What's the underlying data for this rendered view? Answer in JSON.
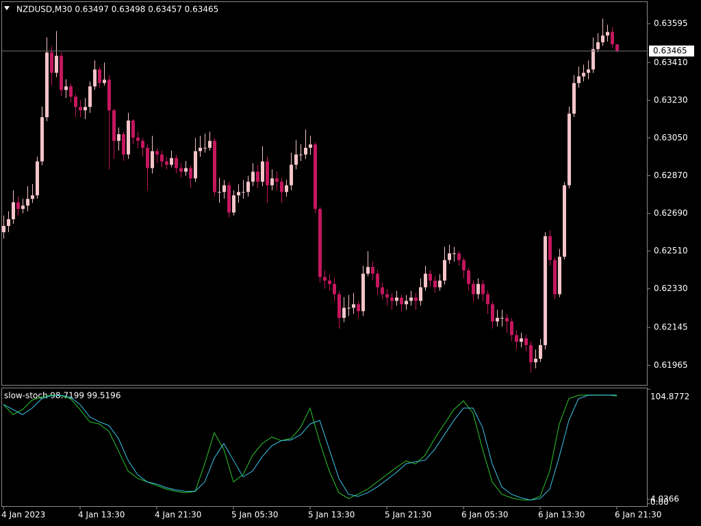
{
  "chart_data": [
    {
      "type": "candlestick",
      "title": "NZDUSD,M30  0.63497 0.63498 0.63457 0.63465",
      "categories": [
        "4 Jan 2023",
        null,
        null,
        null,
        null,
        null,
        null,
        null,
        null,
        null,
        null,
        null,
        null,
        null,
        null,
        null,
        "4 Jan 13:30",
        null,
        null,
        null,
        null,
        null,
        null,
        null,
        null,
        null,
        null,
        null,
        null,
        null,
        null,
        null,
        "4 Jan 21:30",
        null,
        null,
        null,
        null,
        null,
        null,
        null,
        null,
        null,
        null,
        null,
        null,
        null,
        null,
        null,
        "5 Jan 05:30",
        null,
        null,
        null,
        null,
        null,
        null,
        null,
        null,
        null,
        null,
        null,
        null,
        null,
        null,
        null,
        "5 Jan 13:30",
        null,
        null,
        null,
        null,
        null,
        null,
        null,
        null,
        null,
        null,
        null,
        null,
        null,
        null,
        null,
        "5 Jan 21:30",
        null,
        null,
        null,
        null,
        null,
        null,
        null,
        null,
        null,
        null,
        null,
        null,
        null,
        null,
        null,
        "6 Jan 05:30",
        null,
        null,
        null,
        null,
        null,
        null,
        null,
        null,
        null,
        null,
        null,
        null,
        null,
        null,
        null,
        "6 Jan 13:30",
        null,
        null,
        null,
        null,
        null,
        null,
        null,
        null,
        null,
        null,
        null,
        null,
        null,
        null,
        null,
        "6 Jan 21:30"
      ],
      "ohlc": [
        [
          0.626,
          0.6268,
          0.6257,
          0.6263
        ],
        [
          0.6263,
          0.627,
          0.626,
          0.62662
        ],
        [
          0.62662,
          0.628,
          0.6264,
          0.62743
        ],
        [
          0.62743,
          0.6277,
          0.6268,
          0.62711
        ],
        [
          0.62711,
          0.6276,
          0.6269,
          0.62727
        ],
        [
          0.62727,
          0.6282,
          0.627,
          0.62759
        ],
        [
          0.62759,
          0.6283,
          0.6274,
          0.62776
        ],
        [
          0.62776,
          0.6296,
          0.6276,
          0.62938
        ],
        [
          0.62938,
          0.632,
          0.6292,
          0.63149
        ],
        [
          0.63149,
          0.6353,
          0.6313,
          0.63458
        ],
        [
          0.63458,
          0.6349,
          0.633,
          0.63361
        ],
        [
          0.63361,
          0.6356,
          0.6334,
          0.63442
        ],
        [
          0.63442,
          0.6346,
          0.6325,
          0.63279
        ],
        [
          0.63279,
          0.6333,
          0.6324,
          0.63296
        ],
        [
          0.63296,
          0.6331,
          0.6322,
          0.63247
        ],
        [
          0.63247,
          0.6326,
          0.6315,
          0.63198
        ],
        [
          0.63198,
          0.6323,
          0.6315,
          0.63182
        ],
        [
          0.63182,
          0.6324,
          0.6314,
          0.63198
        ],
        [
          0.63198,
          0.6332,
          0.6317,
          0.63296
        ],
        [
          0.63296,
          0.6342,
          0.6328,
          0.63377
        ],
        [
          0.63377,
          0.6339,
          0.6329,
          0.63312
        ],
        [
          0.63312,
          0.6341,
          0.633,
          0.63328
        ],
        [
          0.63328,
          0.6335,
          0.629,
          0.63182
        ],
        [
          0.63182,
          0.6319,
          0.6295,
          0.63036
        ],
        [
          0.63036,
          0.631,
          0.6299,
          0.63068
        ],
        [
          0.63068,
          0.6308,
          0.6294,
          0.62971
        ],
        [
          0.62971,
          0.6317,
          0.6295,
          0.63133
        ],
        [
          0.63133,
          0.6314,
          0.6302,
          0.63052
        ],
        [
          0.63052,
          0.6308,
          0.63,
          0.63036
        ],
        [
          0.63036,
          0.6305,
          0.6296,
          0.63003
        ],
        [
          0.63003,
          0.6302,
          0.628,
          0.62906
        ],
        [
          0.62906,
          0.6306,
          0.6288,
          0.62987
        ],
        [
          0.62987,
          0.63,
          0.6293,
          0.62971
        ],
        [
          0.62971,
          0.6299,
          0.6291,
          0.62938
        ],
        [
          0.62938,
          0.6296,
          0.629,
          0.62922
        ],
        [
          0.62922,
          0.6299,
          0.6291,
          0.62954
        ],
        [
          0.62954,
          0.6297,
          0.6288,
          0.62906
        ],
        [
          0.62906,
          0.6293,
          0.6286,
          0.62889
        ],
        [
          0.62889,
          0.6294,
          0.6287,
          0.62906
        ],
        [
          0.62906,
          0.6292,
          0.6281,
          0.62857
        ],
        [
          0.62857,
          0.6305,
          0.6284,
          0.62987
        ],
        [
          0.62987,
          0.6306,
          0.6296,
          0.63003
        ],
        [
          0.63003,
          0.6307,
          0.6298,
          0.63003
        ],
        [
          0.63003,
          0.6308,
          0.6299,
          0.63036
        ],
        [
          0.63036,
          0.6305,
          0.6277,
          0.62792
        ],
        [
          0.62792,
          0.6286,
          0.6274,
          0.62792
        ],
        [
          0.62792,
          0.6285,
          0.6276,
          0.62824
        ],
        [
          0.62824,
          0.6284,
          0.6267,
          0.62694
        ],
        [
          0.62694,
          0.628,
          0.6268,
          0.62776
        ],
        [
          0.62776,
          0.6283,
          0.6274,
          0.62792
        ],
        [
          0.62792,
          0.6285,
          0.6276,
          0.62792
        ],
        [
          0.62792,
          0.6287,
          0.6277,
          0.62841
        ],
        [
          0.62841,
          0.6293,
          0.6282,
          0.62889
        ],
        [
          0.62889,
          0.6292,
          0.6281,
          0.62841
        ],
        [
          0.62841,
          0.6301,
          0.6282,
          0.62938
        ],
        [
          0.62938,
          0.6296,
          0.6274,
          0.62824
        ],
        [
          0.62824,
          0.629,
          0.628,
          0.62857
        ],
        [
          0.62857,
          0.6289,
          0.628,
          0.62841
        ],
        [
          0.62841,
          0.6286,
          0.6274,
          0.62792
        ],
        [
          0.62792,
          0.6285,
          0.6277,
          0.62824
        ],
        [
          0.62824,
          0.6298,
          0.628,
          0.62922
        ],
        [
          0.62922,
          0.6304,
          0.629,
          0.62971
        ],
        [
          0.62971,
          0.6302,
          0.6294,
          0.62971
        ],
        [
          0.62971,
          0.6309,
          0.6295,
          0.63003
        ],
        [
          0.63003,
          0.6306,
          0.6297,
          0.63019
        ],
        [
          0.63019,
          0.6303,
          0.6269,
          0.62711
        ],
        [
          0.62711,
          0.6272,
          0.6236,
          0.62386
        ],
        [
          0.62386,
          0.6242,
          0.6233,
          0.62369
        ],
        [
          0.62369,
          0.624,
          0.6232,
          0.62353
        ],
        [
          0.62353,
          0.6238,
          0.6227,
          0.62304
        ],
        [
          0.62304,
          0.6232,
          0.6214,
          0.62191
        ],
        [
          0.62191,
          0.6229,
          0.6217,
          0.62239
        ],
        [
          0.62239,
          0.623,
          0.622,
          0.62239
        ],
        [
          0.62239,
          0.6231,
          0.6221,
          0.62256
        ],
        [
          0.62256,
          0.6227,
          0.6219,
          0.62223
        ],
        [
          0.62223,
          0.6244,
          0.622,
          0.62402
        ],
        [
          0.62402,
          0.6251,
          0.6239,
          0.62434
        ],
        [
          0.62434,
          0.6246,
          0.6237,
          0.62402
        ],
        [
          0.62402,
          0.6242,
          0.623,
          0.62337
        ],
        [
          0.62337,
          0.6236,
          0.6228,
          0.62304
        ],
        [
          0.62304,
          0.6233,
          0.6225,
          0.62288
        ],
        [
          0.62288,
          0.6231,
          0.6223,
          0.62272
        ],
        [
          0.62272,
          0.6232,
          0.6225,
          0.62288
        ],
        [
          0.62288,
          0.623,
          0.6222,
          0.62256
        ],
        [
          0.62256,
          0.623,
          0.6223,
          0.62272
        ],
        [
          0.62272,
          0.6232,
          0.6225,
          0.62288
        ],
        [
          0.62288,
          0.6231,
          0.6223,
          0.62272
        ],
        [
          0.62272,
          0.6238,
          0.6225,
          0.62337
        ],
        [
          0.62337,
          0.6244,
          0.6232,
          0.62402
        ],
        [
          0.62402,
          0.6242,
          0.6234,
          0.62369
        ],
        [
          0.62369,
          0.6239,
          0.6231,
          0.62337
        ],
        [
          0.62337,
          0.624,
          0.6232,
          0.62369
        ],
        [
          0.62369,
          0.6253,
          0.6235,
          0.62467
        ],
        [
          0.62467,
          0.6254,
          0.6245,
          0.62499
        ],
        [
          0.62499,
          0.6253,
          0.6246,
          0.62499
        ],
        [
          0.62499,
          0.6251,
          0.6244,
          0.62467
        ],
        [
          0.62467,
          0.6248,
          0.6238,
          0.62418
        ],
        [
          0.62418,
          0.6243,
          0.6232,
          0.62353
        ],
        [
          0.62353,
          0.6237,
          0.6227,
          0.62304
        ],
        [
          0.62304,
          0.6238,
          0.6228,
          0.62353
        ],
        [
          0.62353,
          0.6237,
          0.6227,
          0.62304
        ],
        [
          0.62304,
          0.6232,
          0.6221,
          0.62256
        ],
        [
          0.62256,
          0.6227,
          0.6214,
          0.62174
        ],
        [
          0.62174,
          0.6223,
          0.6215,
          0.62191
        ],
        [
          0.62191,
          0.6223,
          0.6215,
          0.62191
        ],
        [
          0.62191,
          0.6221,
          0.6212,
          0.62174
        ],
        [
          0.62174,
          0.6219,
          0.6208,
          0.62109
        ],
        [
          0.62109,
          0.6213,
          0.6204,
          0.62077
        ],
        [
          0.62077,
          0.6212,
          0.6205,
          0.62093
        ],
        [
          0.62093,
          0.6211,
          0.6203,
          0.62061
        ],
        [
          0.62061,
          0.6208,
          0.6193,
          0.61979
        ],
        [
          0.61979,
          0.6204,
          0.6195,
          0.61996
        ],
        [
          0.61996,
          0.6209,
          0.6198,
          0.62061
        ],
        [
          0.62061,
          0.626,
          0.6204,
          0.62581
        ],
        [
          0.62581,
          0.6261,
          0.6244,
          0.62467
        ],
        [
          0.62467,
          0.6248,
          0.6228,
          0.62304
        ],
        [
          0.62304,
          0.6252,
          0.6229,
          0.62483
        ],
        [
          0.62483,
          0.6284,
          0.6247,
          0.62824
        ],
        [
          0.62824,
          0.632,
          0.6281,
          0.63166
        ],
        [
          0.63166,
          0.6335,
          0.6315,
          0.63312
        ],
        [
          0.63312,
          0.6339,
          0.6329,
          0.63344
        ],
        [
          0.63344,
          0.634,
          0.6332,
          0.63361
        ],
        [
          0.63361,
          0.6342,
          0.6333,
          0.63377
        ],
        [
          0.63377,
          0.6353,
          0.6336,
          0.63474
        ],
        [
          0.63474,
          0.6355,
          0.6346,
          0.63507
        ],
        [
          0.63507,
          0.6362,
          0.6349,
          0.63539
        ],
        [
          0.63539,
          0.6359,
          0.6351,
          0.63556
        ],
        [
          0.63556,
          0.6358,
          0.6348,
          0.63497
        ],
        [
          0.63497,
          0.63498,
          0.63457,
          0.63465
        ]
      ],
      "up_color": "#f5c4c8",
      "down_color": "#c4175e",
      "ylim": [
        0.61871,
        0.63702
      ],
      "yticks": [
        0.63595,
        {
          "value": 0.6341,
          "label": "0.63410"
        },
        {
          "value": 0.6323,
          "label": "0.63230"
        },
        {
          "value": 0.6305,
          "label": "0.63050"
        },
        {
          "value": 0.6287,
          "label": "0.62870"
        },
        {
          "value": 0.6269,
          "label": "0.62690"
        },
        {
          "value": 0.6251,
          "label": "0.62510"
        },
        {
          "value": 0.6233,
          "label": "0.62330"
        },
        0.62145,
        0.61965
      ],
      "last_price": 0.63465
    },
    {
      "type": "line",
      "title": "slow-stoch 98.7199 99.5196",
      "x": [
        0,
        2,
        4,
        6,
        8,
        10,
        12,
        14,
        16,
        18,
        20,
        22,
        24,
        26,
        28,
        30,
        32,
        34,
        36,
        38,
        40,
        42,
        44,
        46,
        48,
        50,
        52,
        54,
        56,
        58,
        60,
        62,
        64,
        66,
        68,
        70,
        72,
        74,
        76,
        78,
        80,
        82,
        84,
        86,
        88,
        90,
        92,
        94,
        96,
        98,
        100,
        102,
        104,
        106,
        108,
        110,
        112,
        114,
        116,
        118,
        120,
        122,
        124,
        126,
        128
      ],
      "series": [
        {
          "color": "#2ec82e",
          "values": [
            90.94,
            81.65,
            86.3,
            94.92,
            97.8,
            99.6,
            98.9,
            96.25,
            86.3,
            75.02,
            73.03,
            66.4,
            48.48,
            29.91,
            23.27,
            19.96,
            16.64,
            13.32,
            11.33,
            10.01,
            11.33,
            36.54,
            65.07,
            49.81,
            19.96,
            26.59,
            44.5,
            55.12,
            61.09,
            57.77,
            59.76,
            69.71,
            87.62,
            56.44,
            29.91,
            10.01,
            4.7,
            8.68,
            13.32,
            19.96,
            26.59,
            33.23,
            39.2,
            36.54,
            44.5,
            59.76,
            73.03,
            86.3,
            94.26,
            82.98,
            49.81,
            19.96,
            8.68,
            5.36,
            3.37,
            3.37,
            6.69,
            29.91,
            73.03,
            96.25,
            99.4,
            99.6,
            99.6,
            99.6,
            98.72
          ]
        },
        {
          "color": "#3cc8ec",
          "values": [
            90.94,
            86.3,
            81.65,
            87.62,
            96.25,
            98.9,
            99.3,
            97.5,
            90.94,
            79.66,
            75.02,
            71.7,
            59.76,
            39.86,
            26.59,
            19.96,
            17.97,
            14.65,
            12.66,
            11.33,
            11.33,
            19.96,
            41.85,
            55.12,
            39.86,
            24.6,
            29.91,
            43.18,
            53.13,
            57.77,
            58.44,
            63.08,
            73.03,
            76.35,
            49.81,
            23.27,
            8.68,
            6.69,
            10.01,
            15.31,
            21.95,
            28.58,
            36.54,
            38.53,
            39.86,
            49.81,
            63.08,
            76.35,
            87.62,
            87.62,
            69.71,
            36.54,
            15.31,
            8.68,
            5.36,
            3.37,
            4.7,
            13.32,
            43.18,
            76.35,
            96.25,
            99.4,
            99.5,
            99.5,
            99.52
          ]
        }
      ],
      "ylim": [
        -2.87,
        105.74
      ],
      "yticks": [
        104.8772,
        4.0366,
        {
          "value": 0,
          "label": "0.00"
        }
      ]
    }
  ]
}
